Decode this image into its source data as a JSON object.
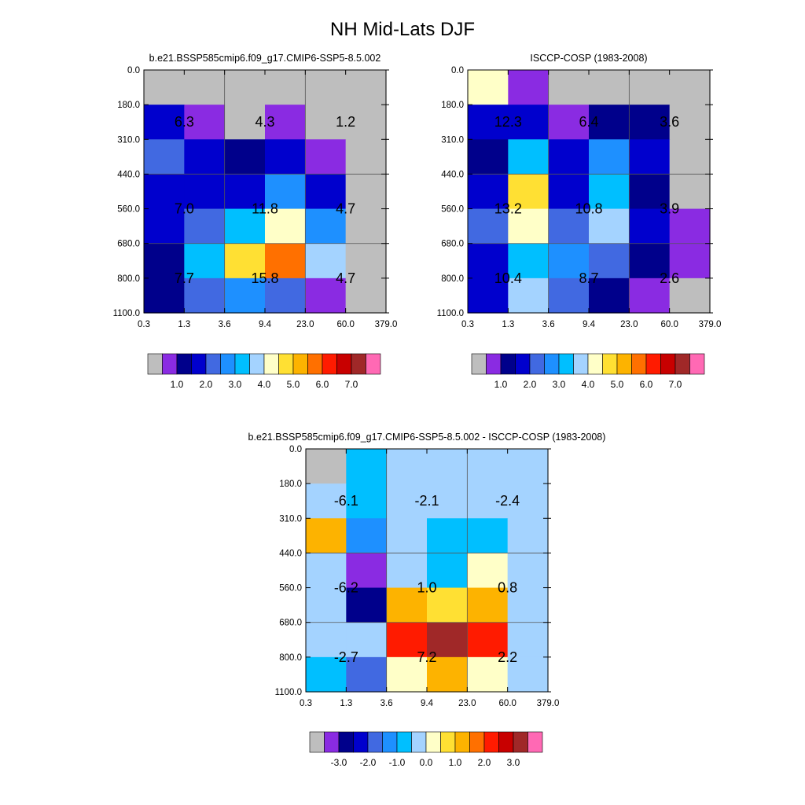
{
  "title": "NH Mid-Lats DJF",
  "colors": {
    "nodata": "#bebebe",
    "palette_main": [
      "#bebebe",
      "#8a2be2",
      "#00008b",
      "#0000cd",
      "#4169e1",
      "#1e90ff",
      "#00bfff",
      "#a4d3ff",
      "#ffffc8",
      "#ffe033",
      "#fdb300",
      "#ff7000",
      "#ff1b00",
      "#c80000",
      "#a02828",
      "#ff69b4"
    ],
    "palette_diff": [
      "#bebebe",
      "#8a2be2",
      "#00008b",
      "#0000cd",
      "#4169e1",
      "#1e90ff",
      "#00bfff",
      "#a4d3ff",
      "#ffffc8",
      "#ffe033",
      "#fdb300",
      "#ff7000",
      "#ff1b00",
      "#c80000",
      "#a02828",
      "#ff69b4"
    ]
  },
  "chart_data": [
    {
      "type": "heatmap",
      "title": "b.e21.BSSP585cmip6.f09_g17.CMIP6-SSP5-8.5.002",
      "x_ticks": [
        "0.3",
        "1.3",
        "3.6",
        "9.4",
        "23.0",
        "60.0",
        "379.0"
      ],
      "y_ticks": [
        "0.0",
        "180.0",
        "310.0",
        "440.0",
        "560.0",
        "680.0",
        "800.0",
        "1100.0"
      ],
      "cells": [
        [
          0,
          0,
          0,
          0,
          0,
          0
        ],
        [
          3,
          1,
          0,
          1,
          0,
          0
        ],
        [
          4,
          3,
          2,
          3,
          1,
          0
        ],
        [
          3,
          3,
          3,
          5,
          3,
          0
        ],
        [
          3,
          4,
          6,
          8,
          5,
          0
        ],
        [
          2,
          6,
          9,
          11,
          7,
          0
        ],
        [
          2,
          4,
          5,
          4,
          1,
          0
        ]
      ],
      "box_labels": [
        {
          "row": 0,
          "col": 0,
          "text": "6.3"
        },
        {
          "row": 0,
          "col": 1,
          "text": "4.3"
        },
        {
          "row": 0,
          "col": 2,
          "text": "1.2"
        },
        {
          "row": 1,
          "col": 0,
          "text": "7.0"
        },
        {
          "row": 1,
          "col": 1,
          "text": "11.8"
        },
        {
          "row": 1,
          "col": 2,
          "text": "4.7"
        },
        {
          "row": 2,
          "col": 0,
          "text": "7.7"
        },
        {
          "row": 2,
          "col": 1,
          "text": "15.8"
        },
        {
          "row": 2,
          "col": 2,
          "text": "4.7"
        }
      ],
      "colorbar_labels": [
        "1.0",
        "2.0",
        "3.0",
        "4.0",
        "5.0",
        "6.0",
        "7.0"
      ]
    },
    {
      "type": "heatmap",
      "title": "ISCCP-COSP (1983-2008)",
      "x_ticks": [
        "0.3",
        "1.3",
        "3.6",
        "9.4",
        "23.0",
        "60.0",
        "379.0"
      ],
      "y_ticks": [
        "0.0",
        "180.0",
        "310.0",
        "440.0",
        "560.0",
        "680.0",
        "800.0",
        "1100.0"
      ],
      "cells": [
        [
          8,
          1,
          0,
          0,
          0,
          0
        ],
        [
          3,
          3,
          1,
          2,
          2,
          0
        ],
        [
          2,
          6,
          3,
          5,
          3,
          0
        ],
        [
          3,
          9,
          3,
          6,
          2,
          0
        ],
        [
          4,
          8,
          4,
          7,
          3,
          1
        ],
        [
          3,
          6,
          5,
          4,
          2,
          1
        ],
        [
          3,
          7,
          4,
          2,
          1,
          0
        ]
      ],
      "box_labels": [
        {
          "row": 0,
          "col": 0,
          "text": "12.3"
        },
        {
          "row": 0,
          "col": 1,
          "text": "6.4"
        },
        {
          "row": 0,
          "col": 2,
          "text": "3.6"
        },
        {
          "row": 1,
          "col": 0,
          "text": "13.2"
        },
        {
          "row": 1,
          "col": 1,
          "text": "10.8"
        },
        {
          "row": 1,
          "col": 2,
          "text": "3.9"
        },
        {
          "row": 2,
          "col": 0,
          "text": "10.4"
        },
        {
          "row": 2,
          "col": 1,
          "text": "8.7"
        },
        {
          "row": 2,
          "col": 2,
          "text": "2.6"
        }
      ],
      "colorbar_labels": [
        "1.0",
        "2.0",
        "3.0",
        "4.0",
        "5.0",
        "6.0",
        "7.0"
      ]
    },
    {
      "type": "heatmap",
      "title": "b.e21.BSSP585cmip6.f09_g17.CMIP6-SSP5-8.5.002 - ISCCP-COSP (1983-2008)",
      "x_ticks": [
        "0.3",
        "1.3",
        "3.6",
        "9.4",
        "23.0",
        "60.0",
        "379.0"
      ],
      "y_ticks": [
        "0.0",
        "180.0",
        "310.0",
        "440.0",
        "560.0",
        "680.0",
        "800.0",
        "1100.0"
      ],
      "cells": [
        [
          0,
          6,
          7,
          7,
          7,
          7
        ],
        [
          7,
          6,
          7,
          7,
          7,
          7
        ],
        [
          10,
          5,
          7,
          6,
          6,
          7
        ],
        [
          7,
          1,
          7,
          6,
          8,
          7
        ],
        [
          7,
          2,
          10,
          9,
          10,
          7
        ],
        [
          7,
          7,
          12,
          14,
          12,
          7
        ],
        [
          6,
          4,
          8,
          10,
          8,
          7
        ]
      ],
      "box_labels": [
        {
          "row": 0,
          "col": 0,
          "text": "-6.1"
        },
        {
          "row": 0,
          "col": 1,
          "text": "-2.1"
        },
        {
          "row": 0,
          "col": 2,
          "text": "-2.4"
        },
        {
          "row": 1,
          "col": 0,
          "text": "-6.2"
        },
        {
          "row": 1,
          "col": 1,
          "text": "1.0"
        },
        {
          "row": 1,
          "col": 2,
          "text": "0.8"
        },
        {
          "row": 2,
          "col": 0,
          "text": "-2.7"
        },
        {
          "row": 2,
          "col": 1,
          "text": "7.2"
        },
        {
          "row": 2,
          "col": 2,
          "text": "2.2"
        }
      ],
      "colorbar_labels": [
        "-3.0",
        "-2.0",
        "-1.0",
        "0.0",
        "1.0",
        "2.0",
        "3.0"
      ]
    }
  ]
}
